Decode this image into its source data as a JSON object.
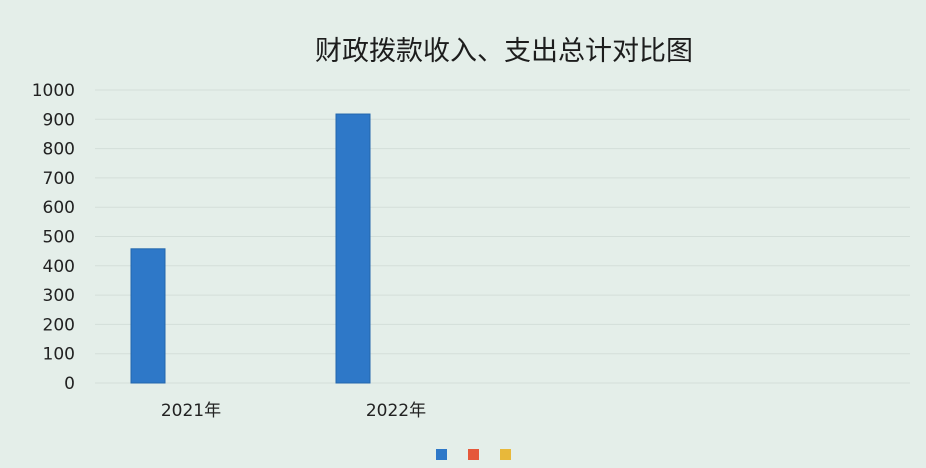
{
  "chart_data": {
    "type": "bar",
    "title": "财政拨款收入、支出总计对比图",
    "categories": [
      "2021年",
      "2022年"
    ],
    "series": [
      {
        "color": "#2e78c8",
        "values": [
          458,
          918
        ]
      }
    ],
    "legend_swatches": [
      "#2e78c8",
      "#e5583a",
      "#e8b83a"
    ],
    "legend_position": "bottom",
    "ylim": [
      0,
      1000
    ],
    "yticks": [
      0,
      100,
      200,
      300,
      400,
      500,
      600,
      700,
      800,
      900,
      1000
    ],
    "grid": true,
    "xlabel": "",
    "ylabel": ""
  }
}
